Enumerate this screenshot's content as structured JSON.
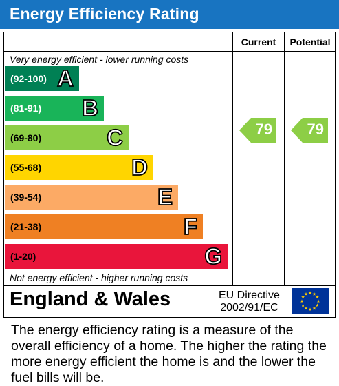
{
  "title": "Energy Efficiency Rating",
  "columns": {
    "current": "Current",
    "potential": "Potential"
  },
  "notes": {
    "top": "Very energy efficient - lower running costs",
    "bottom": "Not energy efficient - higher running costs"
  },
  "bands": [
    {
      "range": "(92-100)",
      "letter": "A",
      "color": "#008054",
      "range_color": "#ffffff"
    },
    {
      "range": "(81-91)",
      "letter": "B",
      "color": "#19b459",
      "range_color": "#ffffff"
    },
    {
      "range": "(69-80)",
      "letter": "C",
      "color": "#8dce46",
      "range_color": "#000000"
    },
    {
      "range": "(55-68)",
      "letter": "D",
      "color": "#ffd500",
      "range_color": "#000000"
    },
    {
      "range": "(39-54)",
      "letter": "E",
      "color": "#fcaa65",
      "range_color": "#000000"
    },
    {
      "range": "(21-38)",
      "letter": "F",
      "color": "#ef8023",
      "range_color": "#000000"
    },
    {
      "range": "(1-20)",
      "letter": "G",
      "color": "#e9153b",
      "range_color": "#000000"
    }
  ],
  "ratings": {
    "current": {
      "value": "79",
      "band": "C",
      "color": "#8dce46"
    },
    "potential": {
      "value": "79",
      "band": "C",
      "color": "#8dce46"
    }
  },
  "footer": {
    "country": "England & Wales",
    "directive_line1": "EU Directive",
    "directive_line2": "2002/91/EC",
    "flag_icon": "eu-flag-icon",
    "flag_color": "#003399",
    "star_color": "#ffcc00"
  },
  "description": "The energy efficiency rating is a measure of the overall efficiency of a home. The higher the rating the more energy efficient the home is and the lower the fuel bills will be."
}
